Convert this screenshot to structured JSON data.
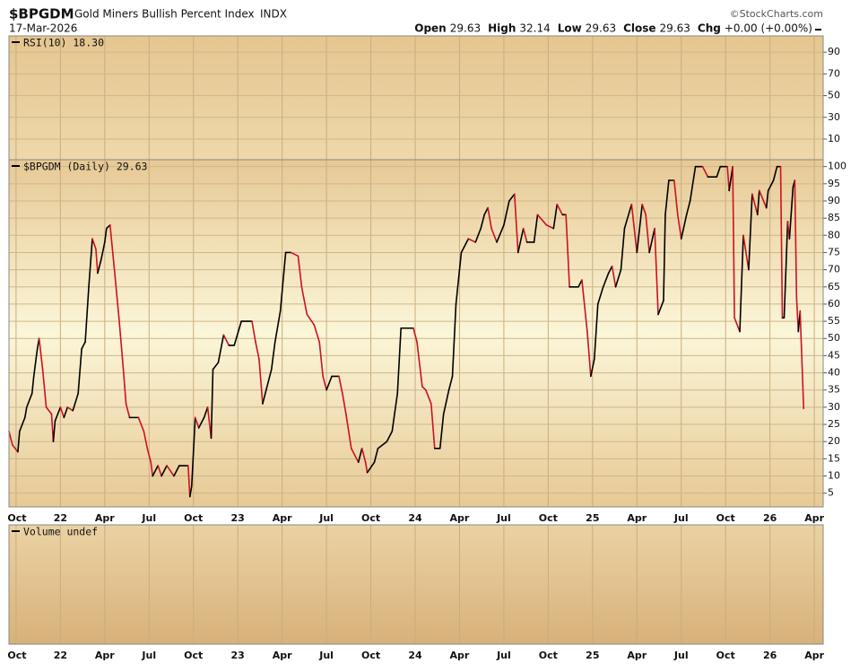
{
  "header": {
    "symbol": "$BPGDM",
    "name": "Gold Miners Bullish Percent Index",
    "exchange": "INDX",
    "date": "17-Mar-2026",
    "credit": "©StockCharts.com",
    "quote": [
      {
        "label": "Open",
        "value": 29.63
      },
      {
        "label": "High",
        "value": 32.14
      },
      {
        "label": "Low",
        "value": 29.63
      },
      {
        "label": "Close",
        "value": 29.63
      },
      {
        "label": "Chg",
        "value": "+0.00 (+0.00%)"
      }
    ]
  },
  "chart_data": [
    {
      "type": "line",
      "title": "RSI(10) 18.30",
      "ylim": [
        -9,
        105
      ],
      "yticks": [
        10,
        30,
        50,
        70,
        90
      ],
      "grid": true
    },
    {
      "type": "line",
      "title": "$BPGDM (Daily) 29.63",
      "up_color": "#000000",
      "down_color": "#cc1122",
      "grid": true,
      "xlim": [
        2021.71,
        2026.3
      ],
      "xticks": [
        {
          "value": 2021.75,
          "label": "Oct"
        },
        {
          "value": 2022.0,
          "label": "22"
        },
        {
          "value": 2022.25,
          "label": "Apr"
        },
        {
          "value": 2022.5,
          "label": "Jul"
        },
        {
          "value": 2022.75,
          "label": "Oct"
        },
        {
          "value": 2023.0,
          "label": "23"
        },
        {
          "value": 2023.25,
          "label": "Apr"
        },
        {
          "value": 2023.5,
          "label": "Jul"
        },
        {
          "value": 2023.75,
          "label": "Oct"
        },
        {
          "value": 2024.0,
          "label": "24"
        },
        {
          "value": 2024.25,
          "label": "Apr"
        },
        {
          "value": 2024.5,
          "label": "Jul"
        },
        {
          "value": 2024.75,
          "label": "Oct"
        },
        {
          "value": 2025.0,
          "label": "25"
        },
        {
          "value": 2025.25,
          "label": "Apr"
        },
        {
          "value": 2025.5,
          "label": "Jul"
        },
        {
          "value": 2025.75,
          "label": "Oct"
        },
        {
          "value": 2026.0,
          "label": "26"
        },
        {
          "value": 2026.25,
          "label": "Apr"
        }
      ],
      "ylim": [
        1,
        102
      ],
      "yticks": [
        5,
        10,
        15,
        20,
        25,
        30,
        35,
        40,
        45,
        50,
        55,
        60,
        65,
        70,
        75,
        80,
        85,
        90,
        95,
        100
      ],
      "x": [
        2021.71,
        2021.73,
        2021.76,
        2021.77,
        2021.8,
        2021.81,
        2021.84,
        2021.85,
        2021.87,
        2021.88,
        2021.9,
        2021.92,
        2021.95,
        2021.96,
        2021.97,
        2022.0,
        2022.02,
        2022.04,
        2022.07,
        2022.1,
        2022.12,
        2022.14,
        2022.16,
        2022.18,
        2022.2,
        2022.21,
        2022.23,
        2022.25,
        2022.26,
        2022.28,
        2022.31,
        2022.33,
        2022.35,
        2022.37,
        2022.39,
        2022.44,
        2022.47,
        2022.49,
        2022.51,
        2022.52,
        2022.55,
        2022.57,
        2022.6,
        2022.64,
        2022.67,
        2022.72,
        2022.73,
        2022.74,
        2022.76,
        2022.78,
        2022.81,
        2022.83,
        2022.85,
        2022.86,
        2022.89,
        2022.92,
        2022.95,
        2022.98,
        2023.02,
        2023.08,
        2023.1,
        2023.12,
        2023.14,
        2023.16,
        2023.19,
        2023.21,
        2023.24,
        2023.27,
        2023.3,
        2023.34,
        2023.36,
        2023.39,
        2023.43,
        2023.46,
        2023.48,
        2023.5,
        2023.53,
        2023.57,
        2023.59,
        2023.61,
        2023.64,
        2023.68,
        2023.7,
        2023.72,
        2023.73,
        2023.77,
        2023.79,
        2023.84,
        2023.87,
        2023.9,
        2023.92,
        2023.99,
        2024.01,
        2024.04,
        2024.06,
        2024.09,
        2024.11,
        2024.14,
        2024.16,
        2024.19,
        2024.21,
        2024.23,
        2024.26,
        2024.3,
        2024.34,
        2024.37,
        2024.39,
        2024.41,
        2024.43,
        2024.46,
        2024.5,
        2024.53,
        2024.56,
        2024.58,
        2024.61,
        2024.63,
        2024.67,
        2024.69,
        2024.74,
        2024.78,
        2024.8,
        2024.83,
        2024.85,
        2024.87,
        2024.92,
        2024.94,
        2024.97,
        2024.99,
        2025.01,
        2025.03,
        2025.06,
        2025.09,
        2025.11,
        2025.13,
        2025.16,
        2025.18,
        2025.22,
        2025.25,
        2025.28,
        2025.3,
        2025.32,
        2025.35,
        2025.37,
        2025.4,
        2025.41,
        2025.43,
        2025.46,
        2025.48,
        2025.5,
        2025.53,
        2025.55,
        2025.58,
        2025.62,
        2025.65,
        2025.7,
        2025.72,
        2025.76,
        2025.77,
        2025.79,
        2025.8,
        2025.83,
        2025.85,
        2025.88,
        2025.9,
        2025.93,
        2025.94,
        2025.98,
        2025.99,
        2026.02,
        2026.04,
        2026.06,
        2026.07,
        2026.08,
        2026.1,
        2026.11,
        2026.13,
        2026.14,
        2026.15,
        2026.16,
        2026.17,
        2026.19
      ],
      "values": [
        23,
        19,
        17,
        23,
        27,
        30,
        34,
        39,
        47,
        50,
        41,
        30,
        28,
        20,
        26,
        30,
        27,
        30,
        29,
        34,
        47,
        49,
        65,
        79,
        76,
        69,
        73,
        78,
        82,
        83,
        67,
        56,
        44,
        31,
        27,
        27,
        23,
        18,
        14,
        10,
        13,
        10,
        13,
        10,
        13,
        13,
        4,
        7,
        27,
        24,
        27,
        30,
        21,
        41,
        43,
        51,
        48,
        48,
        55,
        55,
        49,
        44,
        31,
        35,
        41,
        49,
        58,
        75,
        75,
        74,
        65,
        57,
        54,
        49,
        39,
        35,
        39,
        39,
        34,
        28,
        18,
        14,
        18,
        14,
        11,
        14,
        18,
        20,
        23,
        34,
        53,
        53,
        49,
        36,
        35,
        31,
        18,
        18,
        28,
        35,
        39,
        60,
        75,
        79,
        78,
        82,
        86,
        88,
        82,
        78,
        83,
        90,
        92,
        75,
        82,
        78,
        78,
        86,
        83,
        82,
        89,
        86,
        86,
        65,
        65,
        67,
        52,
        39,
        44,
        60,
        65,
        69,
        71,
        65,
        70,
        82,
        89,
        75,
        89,
        86,
        75,
        82,
        57,
        61,
        86,
        96,
        96,
        86,
        79,
        86,
        90,
        100,
        100,
        97,
        97,
        100,
        100,
        93,
        100,
        56,
        52,
        80,
        70,
        92,
        86,
        93,
        88,
        93,
        96,
        100,
        100,
        56,
        56,
        84,
        79,
        94,
        96,
        62,
        52,
        58,
        29.63
      ]
    },
    {
      "type": "line",
      "title": "Volume undef"
    }
  ]
}
